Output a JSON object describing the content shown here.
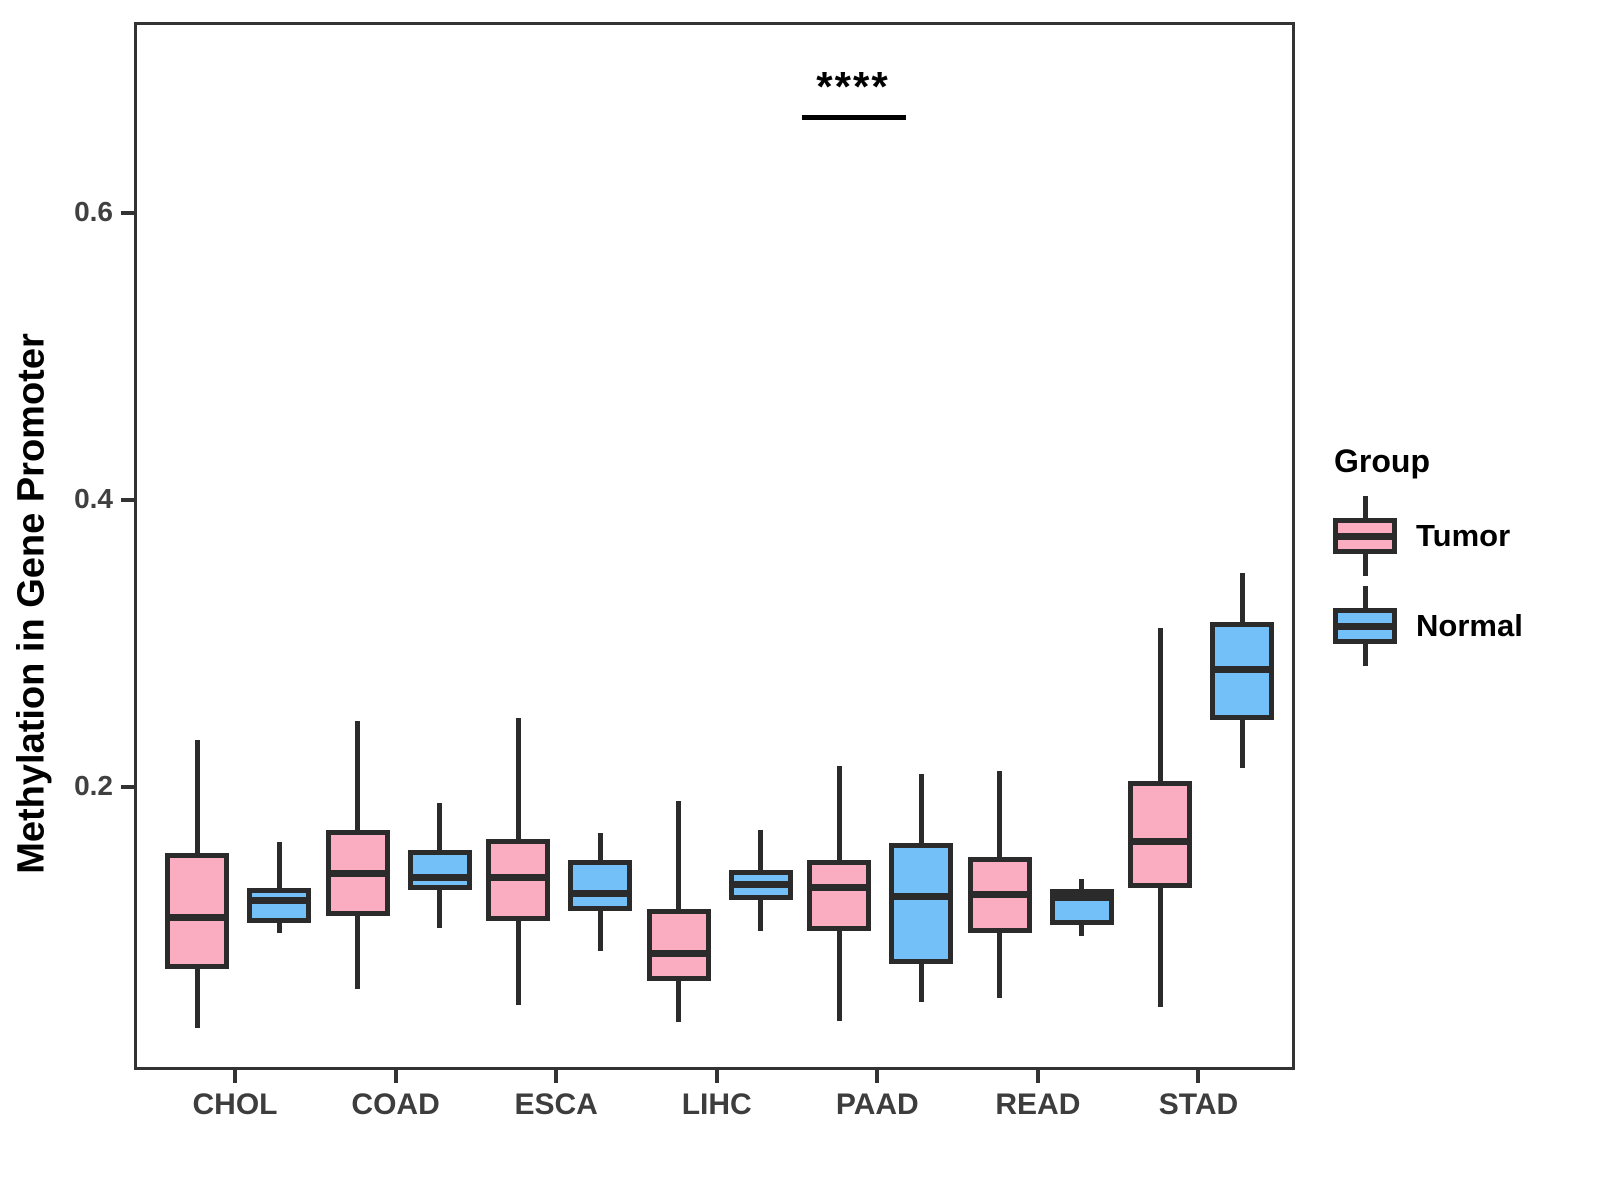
{
  "chart_data": {
    "type": "boxplot",
    "title": "",
    "ylabel": "Methylation in Gene Promoter",
    "xlabel": "",
    "categories": [
      "CHOL",
      "COAD",
      "ESCA",
      "LIHC",
      "PAAD",
      "READ",
      "STAD"
    ],
    "y_ticks": [
      0.2,
      0.4,
      0.6
    ],
    "y_tick_labels": [
      "0.2",
      "0.4",
      "0.6"
    ],
    "ylim": [
      0.0,
      0.733
    ],
    "grid": "off",
    "legend_position": "right",
    "legend": {
      "title": "Group"
    },
    "annotation": {
      "label": "****",
      "category": "LIHC",
      "note": "significance bar between Tumor and Normal at LIHC"
    },
    "colors": {
      "line": "#2b2b2b",
      "axis_text": "#404040",
      "panel_border": "#333333"
    },
    "series": [
      {
        "name": "Tumor",
        "color": "#faadc0",
        "stats_format": [
          "whisker_low",
          "q1",
          "median",
          "q3",
          "whisker_high"
        ],
        "stats": [
          [
            0.034,
            0.075,
            0.111,
            0.156,
            0.235
          ],
          [
            0.061,
            0.112,
            0.142,
            0.172,
            0.248
          ],
          [
            0.05,
            0.109,
            0.139,
            0.166,
            0.25
          ],
          [
            0.038,
            0.067,
            0.086,
            0.117,
            0.192
          ],
          [
            0.039,
            0.102,
            0.132,
            0.151,
            0.217
          ],
          [
            0.055,
            0.1,
            0.127,
            0.153,
            0.213
          ],
          [
            0.049,
            0.132,
            0.164,
            0.206,
            0.313
          ]
        ]
      },
      {
        "name": "Normal",
        "color": "#73bff7",
        "stats_format": [
          "whisker_low",
          "q1",
          "median",
          "q3",
          "whisker_high"
        ],
        "stats": [
          [
            0.1,
            0.107,
            0.123,
            0.132,
            0.164
          ],
          [
            0.104,
            0.13,
            0.139,
            0.158,
            0.191
          ],
          [
            0.088,
            0.116,
            0.128,
            0.151,
            0.17
          ],
          [
            0.102,
            0.123,
            0.134,
            0.144,
            0.172
          ],
          [
            0.052,
            0.079,
            0.126,
            0.163,
            0.211
          ],
          [
            0.098,
            0.106,
            0.125,
            0.131,
            0.138
          ],
          [
            0.215,
            0.249,
            0.284,
            0.317,
            0.351
          ]
        ]
      }
    ]
  }
}
